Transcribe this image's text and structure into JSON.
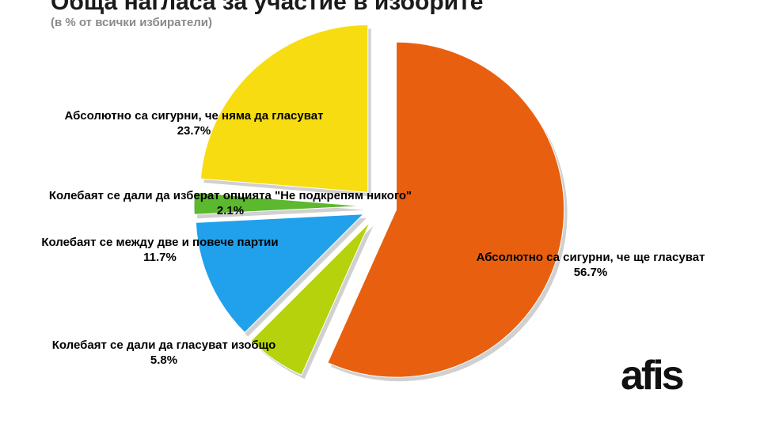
{
  "title": "Обща нагласа за участие в изборите",
  "subtitle": "(в % от всички избиратели)",
  "logo_text": "afis",
  "chart_data": {
    "type": "pie",
    "title": "Обща нагласа за участие в изборите",
    "subtitle": "(в % от всички избиратели)",
    "unit": "%",
    "slices": [
      {
        "label": "Абсолютно са сигурни, че ще гласуват",
        "value": 56.7,
        "value_label": "56.7%",
        "color": "#E8600F"
      },
      {
        "label": "Колебаят се дали да гласуват изобщо",
        "value": 5.8,
        "value_label": "5.8%",
        "color": "#B5D20C"
      },
      {
        "label": "Колебаят се между две и повече партии",
        "value": 11.7,
        "value_label": "11.7%",
        "color": "#21A1EC"
      },
      {
        "label": "Колебаят се дали да изберат опцията \"Не подкрепям никого\"",
        "value": 2.1,
        "value_label": "2.1%",
        "color": "#5CB82E"
      },
      {
        "label": "Абсолютно са сигурни, че няма да гласуват",
        "value": 23.7,
        "value_label": "23.7%",
        "color": "#F7DC12"
      }
    ]
  }
}
